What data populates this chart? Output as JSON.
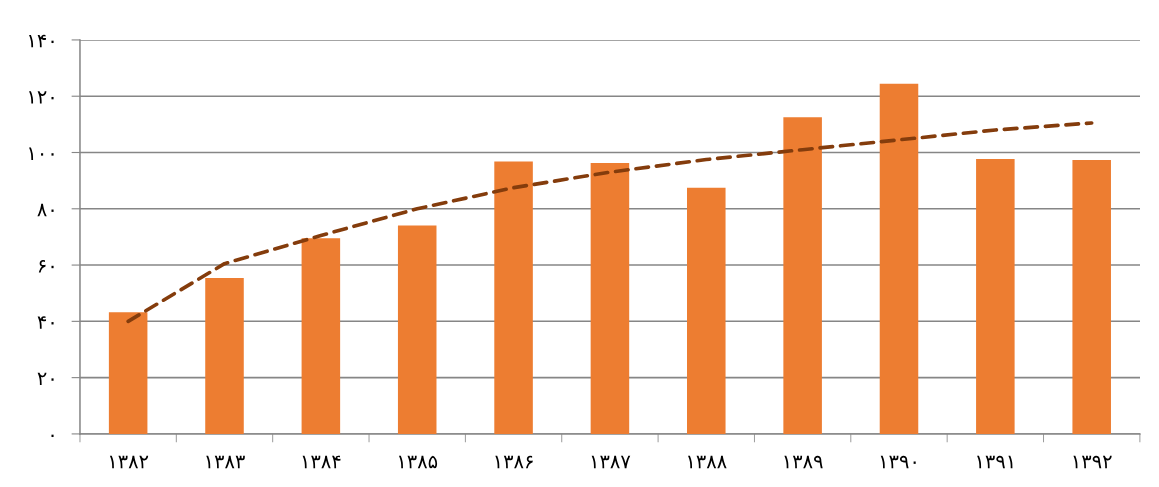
{
  "chart_data": {
    "type": "bar",
    "categories": [
      "۱۳۸۲",
      "۱۳۸۳",
      "۱۳۸۴",
      "۱۳۸۵",
      "۱۳۸۶",
      "۱۳۸۷",
      "۱۳۸۸",
      "۱۳۸۹",
      "۱۳۹۰",
      "۱۳۹۱",
      "۱۳۹۲"
    ],
    "series": [
      {
        "color": "#ed7d31",
        "values": [
          43.2,
          55.4,
          69.5,
          74.1,
          96.8,
          96.3,
          87.5,
          112.5,
          124.4,
          97.7,
          97.3
        ]
      },
      {
        "type": "line",
        "color": "#843c0c",
        "line_style": "dashed",
        "values": [
          40,
          60.5,
          70.5,
          80,
          87.5,
          93,
          97.5,
          101,
          104.5,
          108,
          110.5
        ]
      }
    ],
    "ylim": [
      0,
      140
    ],
    "yticks": [
      {
        "value": 0,
        "label": "۰"
      },
      {
        "value": 20,
        "label": "۲۰"
      },
      {
        "value": 40,
        "label": "۴۰"
      },
      {
        "value": 60,
        "label": "۶۰"
      },
      {
        "value": 80,
        "label": "۸۰"
      },
      {
        "value": 100,
        "label": "۱۰۰"
      },
      {
        "value": 120,
        "label": "۱۲۰"
      },
      {
        "value": 140,
        "label": "۱۴۰"
      }
    ],
    "grid": "y"
  }
}
